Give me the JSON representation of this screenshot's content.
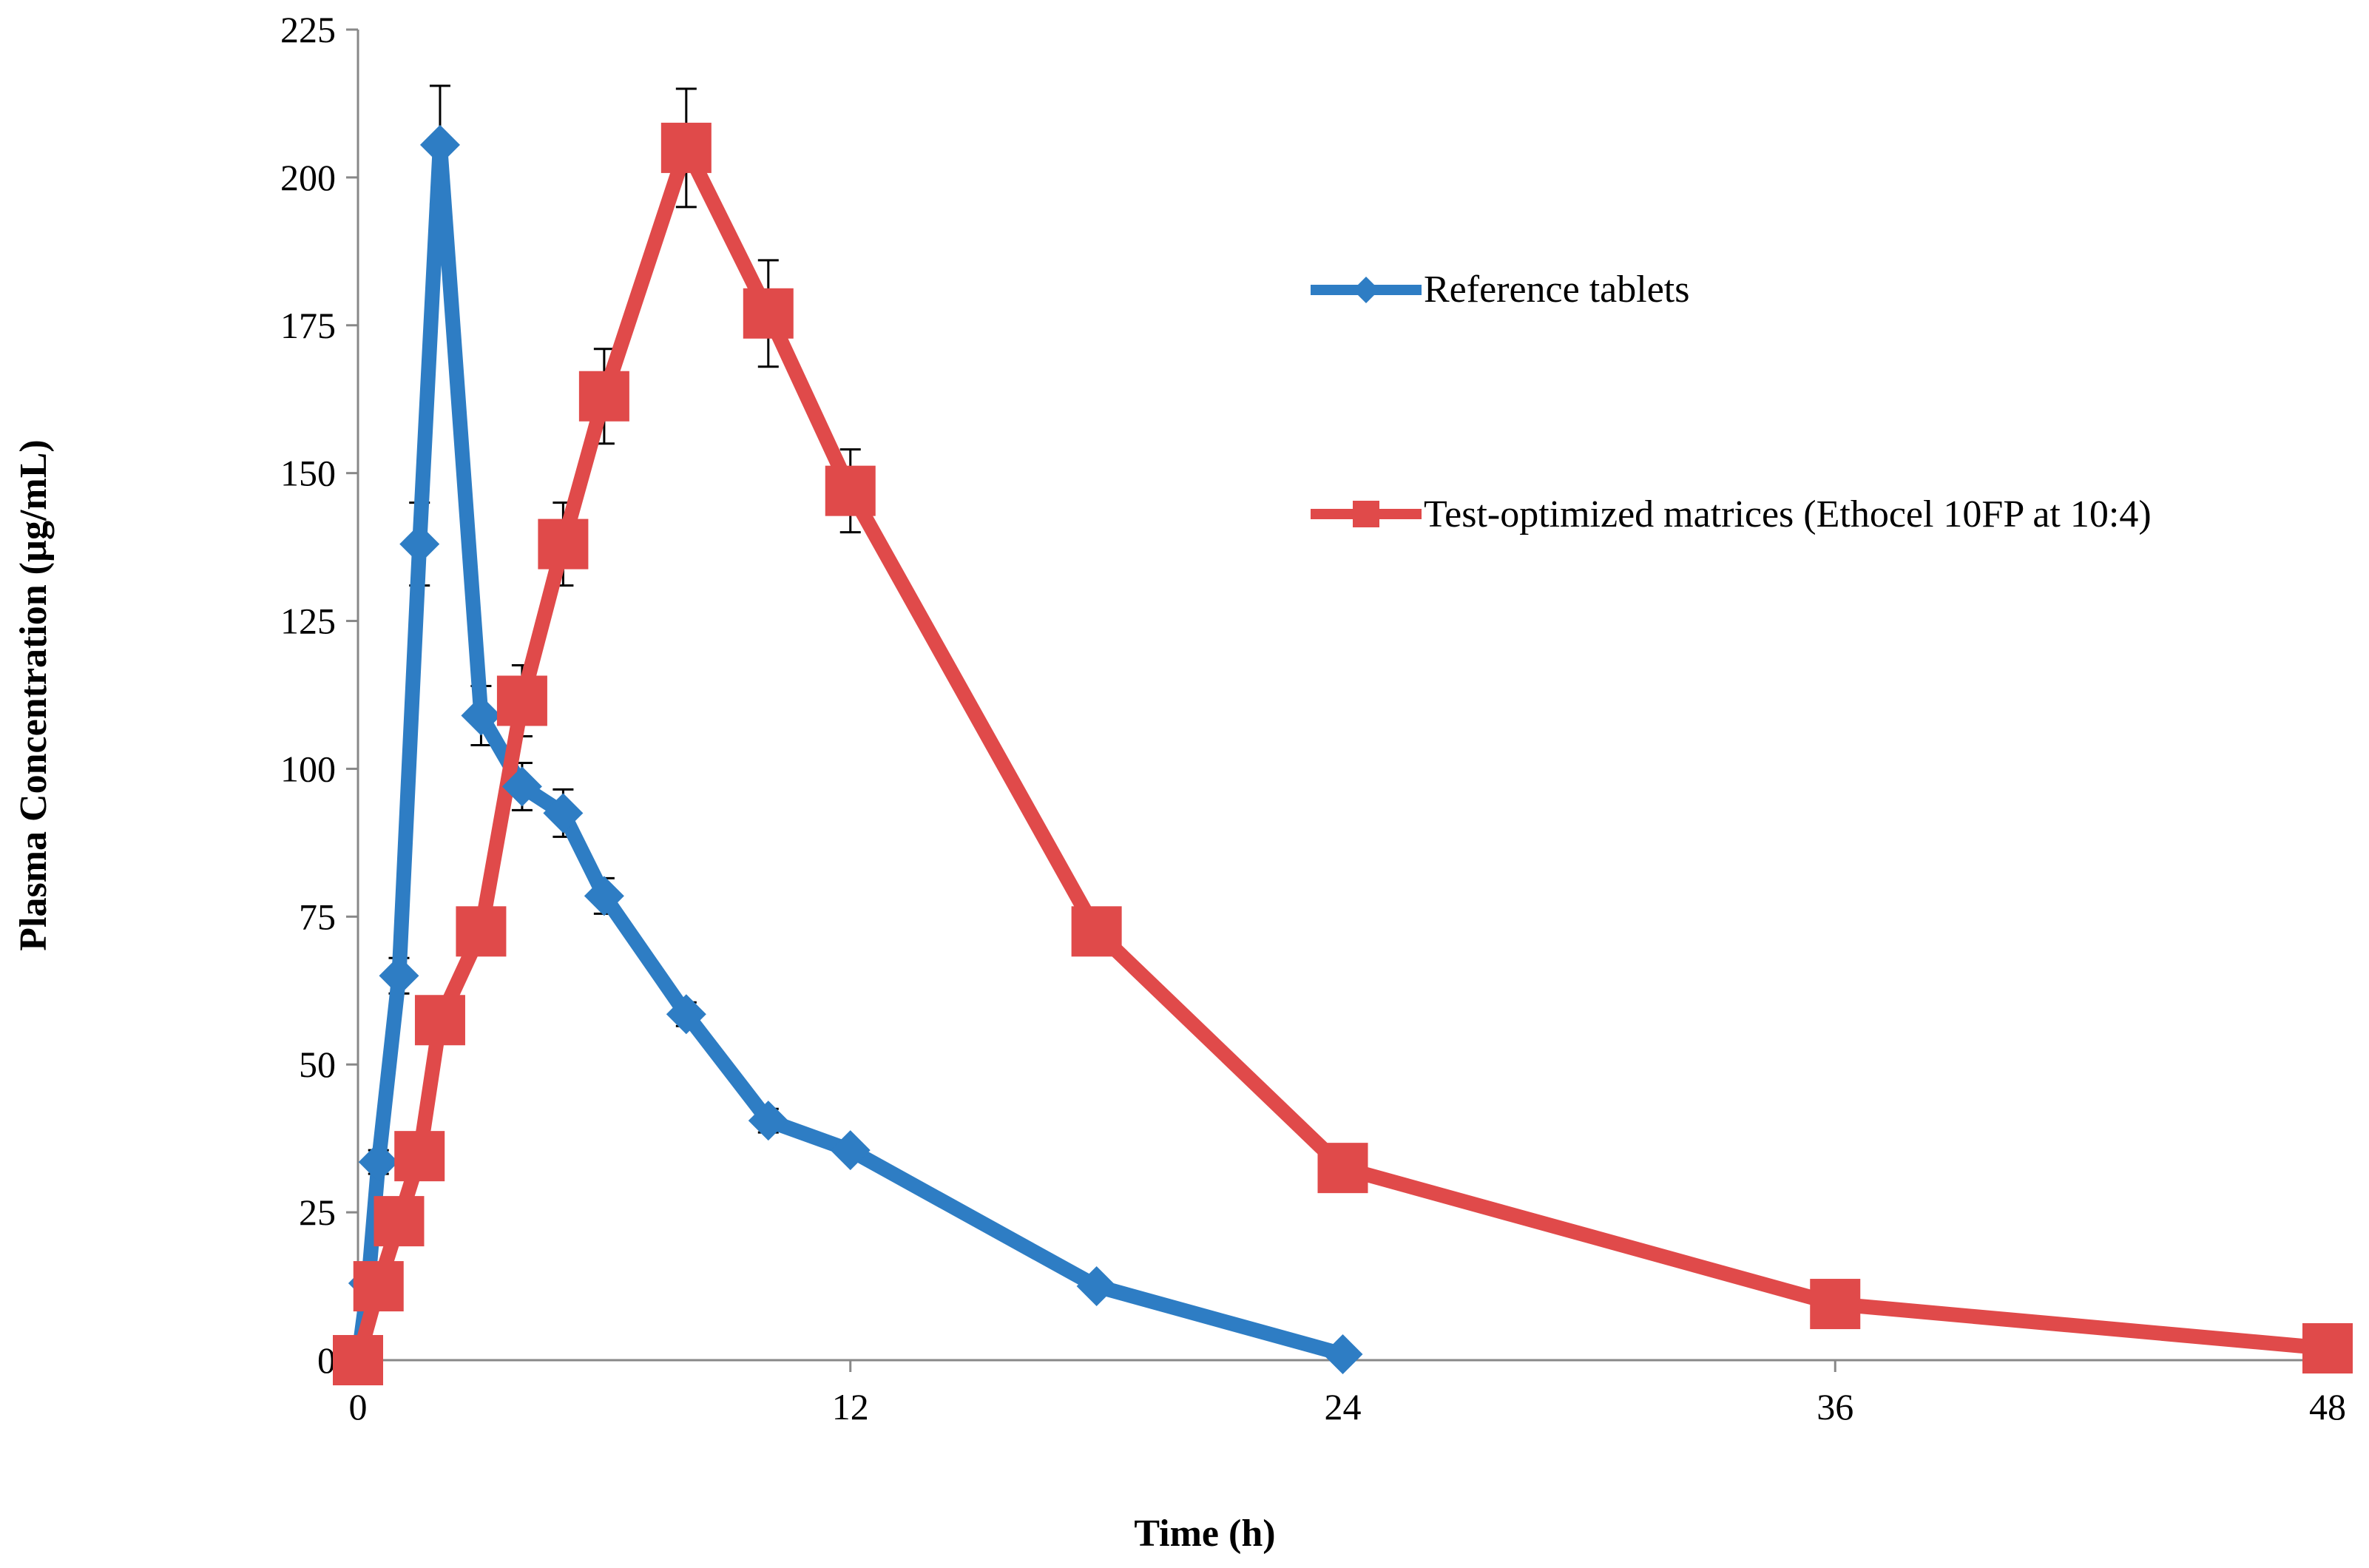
{
  "chart_data": {
    "type": "line",
    "title": "",
    "xlabel": "Time (h)",
    "ylabel": "Plasma Concentration (µg/mL)",
    "xlim": [
      0,
      48
    ],
    "ylim": [
      0,
      225
    ],
    "xticks": [
      0,
      12,
      24,
      36,
      48
    ],
    "yticks": [
      0,
      25,
      50,
      75,
      100,
      125,
      150,
      175,
      200,
      225
    ],
    "grid": false,
    "legend_position": "right",
    "series": [
      {
        "name": "Reference tablets",
        "color": "#2e7dc4",
        "marker": "diamond",
        "points": [
          {
            "x": 0,
            "y": 0,
            "err": 0
          },
          {
            "x": 0.25,
            "y": 13,
            "err": 0
          },
          {
            "x": 0.5,
            "y": 33.5,
            "err": 2
          },
          {
            "x": 1,
            "y": 65,
            "err": 3
          },
          {
            "x": 1.5,
            "y": 138,
            "err": 7
          },
          {
            "x": 2,
            "y": 205.5,
            "err": 10
          },
          {
            "x": 3,
            "y": 109,
            "err": 5
          },
          {
            "x": 4,
            "y": 97,
            "err": 4
          },
          {
            "x": 5,
            "y": 92.5,
            "err": 4
          },
          {
            "x": 6,
            "y": 78.5,
            "err": 3
          },
          {
            "x": 8,
            "y": 58.5,
            "err": 2
          },
          {
            "x": 10,
            "y": 40.5,
            "err": 2
          },
          {
            "x": 12,
            "y": 35.5,
            "err": 1
          },
          {
            "x": 18,
            "y": 12.5,
            "err": 1
          },
          {
            "x": 24,
            "y": 1,
            "err": 0.5
          }
        ]
      },
      {
        "name": "Test-optimized matrices (Ethocel 10FP at 10:4)",
        "color": "#e04a4a",
        "marker": "square",
        "points": [
          {
            "x": 0,
            "y": 0,
            "err": 0
          },
          {
            "x": 0.5,
            "y": 12.5,
            "err": 1
          },
          {
            "x": 1,
            "y": 23.5,
            "err": 2
          },
          {
            "x": 1.5,
            "y": 34.5,
            "err": 2
          },
          {
            "x": 2,
            "y": 57.5,
            "err": 3
          },
          {
            "x": 3,
            "y": 72.5,
            "err": 4
          },
          {
            "x": 4,
            "y": 111.5,
            "err": 6
          },
          {
            "x": 5,
            "y": 138,
            "err": 7
          },
          {
            "x": 6,
            "y": 163,
            "err": 8
          },
          {
            "x": 8,
            "y": 205,
            "err": 10
          },
          {
            "x": 10,
            "y": 177,
            "err": 9
          },
          {
            "x": 12,
            "y": 147,
            "err": 7
          },
          {
            "x": 18,
            "y": 72.5,
            "err": 3
          },
          {
            "x": 24,
            "y": 32.5,
            "err": 2
          },
          {
            "x": 36,
            "y": 9.5,
            "err": 1
          },
          {
            "x": 48,
            "y": 2,
            "err": 0.5
          }
        ]
      }
    ]
  }
}
